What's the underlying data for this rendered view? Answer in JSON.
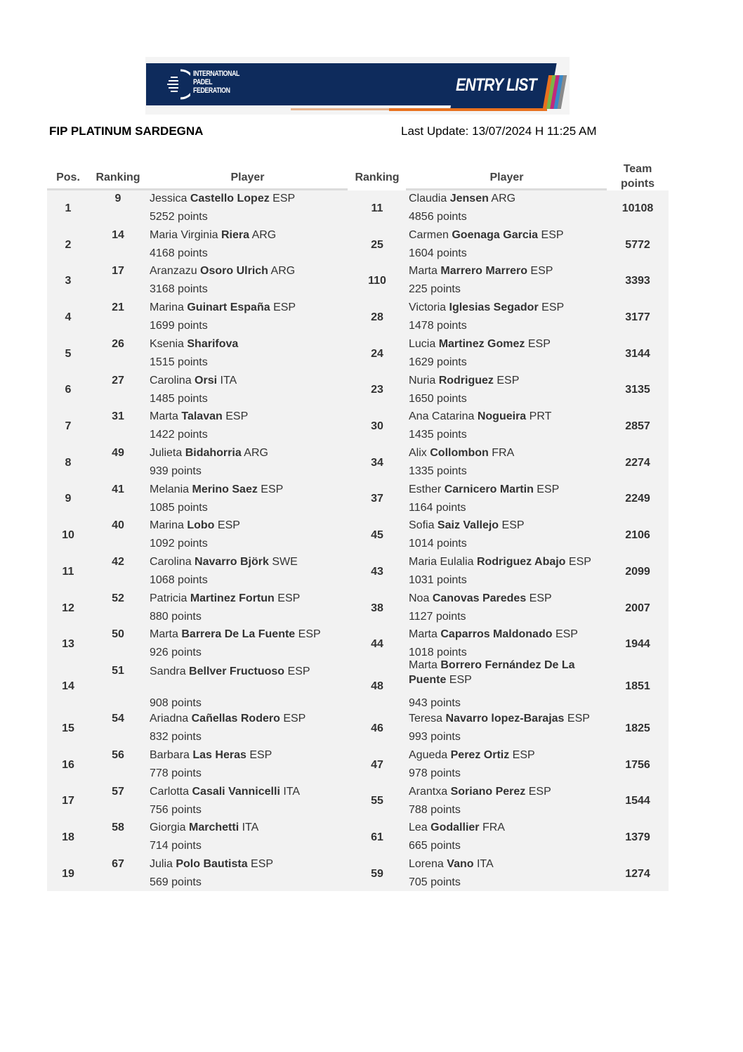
{
  "banner": {
    "org_line1": "INTERNATIONAL",
    "org_line2": "PADEL",
    "org_line3": "FEDERATION",
    "label": "ENTRY LIST",
    "colors": {
      "navy": "#0e2b5c",
      "orange": "#e9711e"
    }
  },
  "header": {
    "tournament": "FIP PLATINUM SARDEGNA",
    "last_update": "Last Update:  13/07/2024 H 11:25 AM"
  },
  "columns": {
    "pos": "Pos.",
    "ranking1": "Ranking",
    "player1": "Player",
    "ranking2": "Ranking",
    "player2": "Player",
    "team_points_1": "Team",
    "team_points_2": "points"
  },
  "rows": [
    {
      "pos": "1",
      "p1": {
        "rank": "9",
        "first": "Jessica",
        "last": "Castello Lopez",
        "nat": "ESP",
        "points": "5252 points"
      },
      "p2": {
        "rank": "11",
        "first": "Claudia",
        "last": "Jensen",
        "nat": "ARG",
        "points": "4856 points"
      },
      "team": "10108"
    },
    {
      "pos": "2",
      "p1": {
        "rank": "14",
        "first": "Maria Virginia",
        "last": "Riera",
        "nat": "ARG",
        "points": "4168 points"
      },
      "p2": {
        "rank": "25",
        "first": "Carmen",
        "last": "Goenaga Garcia",
        "nat": "ESP",
        "points": "1604 points"
      },
      "team": "5772"
    },
    {
      "pos": "3",
      "p1": {
        "rank": "17",
        "first": "Aranzazu",
        "last": "Osoro Ulrich",
        "nat": "ARG",
        "points": "3168 points"
      },
      "p2": {
        "rank": "110",
        "first": "Marta",
        "last": "Marrero Marrero",
        "nat": "ESP",
        "points": "225 points"
      },
      "team": "3393"
    },
    {
      "pos": "4",
      "p1": {
        "rank": "21",
        "first": "Marina",
        "last": "Guinart España",
        "nat": "ESP",
        "points": "1699 points"
      },
      "p2": {
        "rank": "28",
        "first": "Victoria",
        "last": "Iglesias Segador",
        "nat": "ESP",
        "points": "1478 points"
      },
      "team": "3177"
    },
    {
      "pos": "5",
      "p1": {
        "rank": "26",
        "first": "Ksenia",
        "last": "Sharifova",
        "nat": "",
        "points": "1515 points"
      },
      "p2": {
        "rank": "24",
        "first": "Lucia",
        "last": "Martinez Gomez",
        "nat": "ESP",
        "points": "1629 points"
      },
      "team": "3144"
    },
    {
      "pos": "6",
      "p1": {
        "rank": "27",
        "first": "Carolina",
        "last": "Orsi",
        "nat": "ITA",
        "points": "1485 points"
      },
      "p2": {
        "rank": "23",
        "first": "Nuria",
        "last": "Rodriguez",
        "nat": "ESP",
        "points": "1650 points"
      },
      "team": "3135"
    },
    {
      "pos": "7",
      "p1": {
        "rank": "31",
        "first": "Marta",
        "last": "Talavan",
        "nat": "ESP",
        "points": "1422 points"
      },
      "p2": {
        "rank": "30",
        "first": "Ana Catarina",
        "last": "Nogueira",
        "nat": "PRT",
        "points": "1435 points"
      },
      "team": "2857"
    },
    {
      "pos": "8",
      "p1": {
        "rank": "49",
        "first": "Julieta",
        "last": "Bidahorria",
        "nat": "ARG",
        "points": "939 points"
      },
      "p2": {
        "rank": "34",
        "first": "Alix",
        "last": "Collombon",
        "nat": "FRA",
        "points": "1335 points"
      },
      "team": "2274"
    },
    {
      "pos": "9",
      "p1": {
        "rank": "41",
        "first": "Melania",
        "last": "Merino Saez",
        "nat": "ESP",
        "points": "1085 points"
      },
      "p2": {
        "rank": "37",
        "first": "Esther",
        "last": "Carnicero Martin",
        "nat": "ESP",
        "points": "1164 points"
      },
      "team": "2249"
    },
    {
      "pos": "10",
      "p1": {
        "rank": "40",
        "first": "Marina",
        "last": "Lobo",
        "nat": "ESP",
        "points": "1092 points"
      },
      "p2": {
        "rank": "45",
        "first": "Sofia",
        "last": "Saiz Vallejo",
        "nat": "ESP",
        "points": "1014 points"
      },
      "team": "2106"
    },
    {
      "pos": "11",
      "p1": {
        "rank": "42",
        "first": "Carolina",
        "last": "Navarro Björk",
        "nat": "SWE",
        "points": "1068 points"
      },
      "p2": {
        "rank": "43",
        "first": "Maria Eulalia",
        "last": "Rodriguez Abajo",
        "nat": "ESP",
        "points": "1031 points"
      },
      "team": "2099"
    },
    {
      "pos": "12",
      "p1": {
        "rank": "52",
        "first": "Patricia",
        "last": "Martinez Fortun",
        "nat": "ESP",
        "points": "880 points"
      },
      "p2": {
        "rank": "38",
        "first": "Noa",
        "last": "Canovas Paredes",
        "nat": "ESP",
        "points": "1127 points"
      },
      "team": "2007"
    },
    {
      "pos": "13",
      "p1": {
        "rank": "50",
        "first": "Marta",
        "last": "Barrera De La Fuente",
        "nat": "ESP",
        "points": "926 points"
      },
      "p2": {
        "rank": "44",
        "first": "Marta",
        "last": "Caparros Maldonado",
        "nat": "ESP",
        "points": "1018 points"
      },
      "team": "1944"
    },
    {
      "pos": "14",
      "p1": {
        "rank": "51",
        "first": "Sandra",
        "last": "Bellver Fructuoso",
        "nat": "ESP",
        "points": "908 points"
      },
      "p2": {
        "rank": "48",
        "first": "Marta",
        "last": "Borrero Fernández De La Puente",
        "nat": "ESP",
        "points": "943 points"
      },
      "team": "1851"
    },
    {
      "pos": "15",
      "p1": {
        "rank": "54",
        "first": "Ariadna",
        "last": "Cañellas Rodero",
        "nat": "ESP",
        "points": "832 points"
      },
      "p2": {
        "rank": "46",
        "first": "Teresa",
        "last": "Navarro lopez-Barajas",
        "nat": "ESP",
        "points": "993 points"
      },
      "team": "1825"
    },
    {
      "pos": "16",
      "p1": {
        "rank": "56",
        "first": "Barbara",
        "last": "Las Heras",
        "nat": "ESP",
        "points": "778 points"
      },
      "p2": {
        "rank": "47",
        "first": "Agueda",
        "last": "Perez Ortiz",
        "nat": "ESP",
        "points": "978 points"
      },
      "team": "1756"
    },
    {
      "pos": "17",
      "p1": {
        "rank": "57",
        "first": "Carlotta",
        "last": "Casali Vannicelli",
        "nat": "ITA",
        "points": "756 points"
      },
      "p2": {
        "rank": "55",
        "first": "Arantxa",
        "last": "Soriano Perez",
        "nat": "ESP",
        "points": "788 points"
      },
      "team": "1544"
    },
    {
      "pos": "18",
      "p1": {
        "rank": "58",
        "first": "Giorgia",
        "last": "Marchetti",
        "nat": "ITA",
        "points": "714 points"
      },
      "p2": {
        "rank": "61",
        "first": "Lea",
        "last": "Godallier",
        "nat": "FRA",
        "points": "665 points"
      },
      "team": "1379"
    },
    {
      "pos": "19",
      "p1": {
        "rank": "67",
        "first": "Julia",
        "last": "Polo Bautista",
        "nat": "ESP",
        "points": "569 points"
      },
      "p2": {
        "rank": "59",
        "first": "Lorena",
        "last": "Vano",
        "nat": "ITA",
        "points": "705 points"
      },
      "team": "1274"
    }
  ]
}
